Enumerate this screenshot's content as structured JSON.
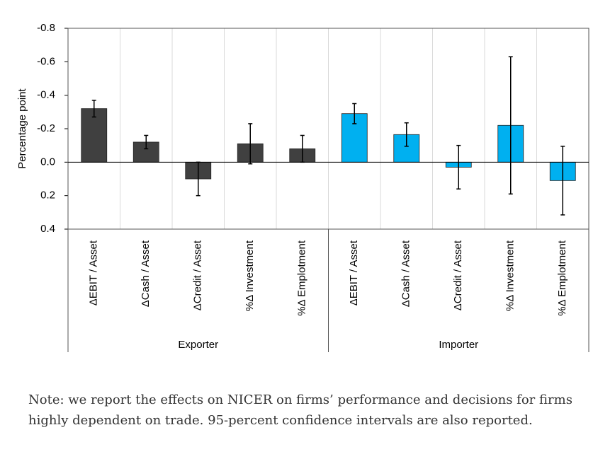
{
  "chart_data": {
    "type": "bar",
    "y_label": "Percentage point",
    "ylim": [
      -0.8,
      0.4
    ],
    "y_reversed": true,
    "yticks": [
      -0.8,
      -0.6,
      -0.4,
      -0.2,
      {
        "value": 0,
        "label": "0.0"
      },
      0.2,
      0.4
    ],
    "groups": [
      {
        "name": "Exporter",
        "color": "#404040",
        "categories": [
          "ΔEBIT / Asset",
          "ΔCash / Asset",
          "ΔCredit / Asset",
          "%Δ Investment",
          "%Δ Emplotment"
        ],
        "values": [
          -0.32,
          -0.12,
          0.1,
          -0.11,
          -0.08
        ],
        "errors": [
          0.05,
          0.04,
          0.1,
          0.12,
          0.08
        ]
      },
      {
        "name": "Importer",
        "color": "#00b0f0",
        "categories": [
          "ΔEBIT / Asset",
          "ΔCash / Asset",
          "ΔCredit / Asset",
          "%Δ Investment",
          "%Δ Emplotment"
        ],
        "values": [
          -0.29,
          -0.165,
          0.03,
          -0.22,
          0.11
        ],
        "errors": [
          0.06,
          0.07,
          0.13,
          0.41,
          0.205
        ]
      }
    ]
  },
  "note": [
    "Note: we report the effects on NICER on firms’ performance and decisions for firms",
    "highly dependent on trade. 95-percent confidence intervals are also reported."
  ]
}
